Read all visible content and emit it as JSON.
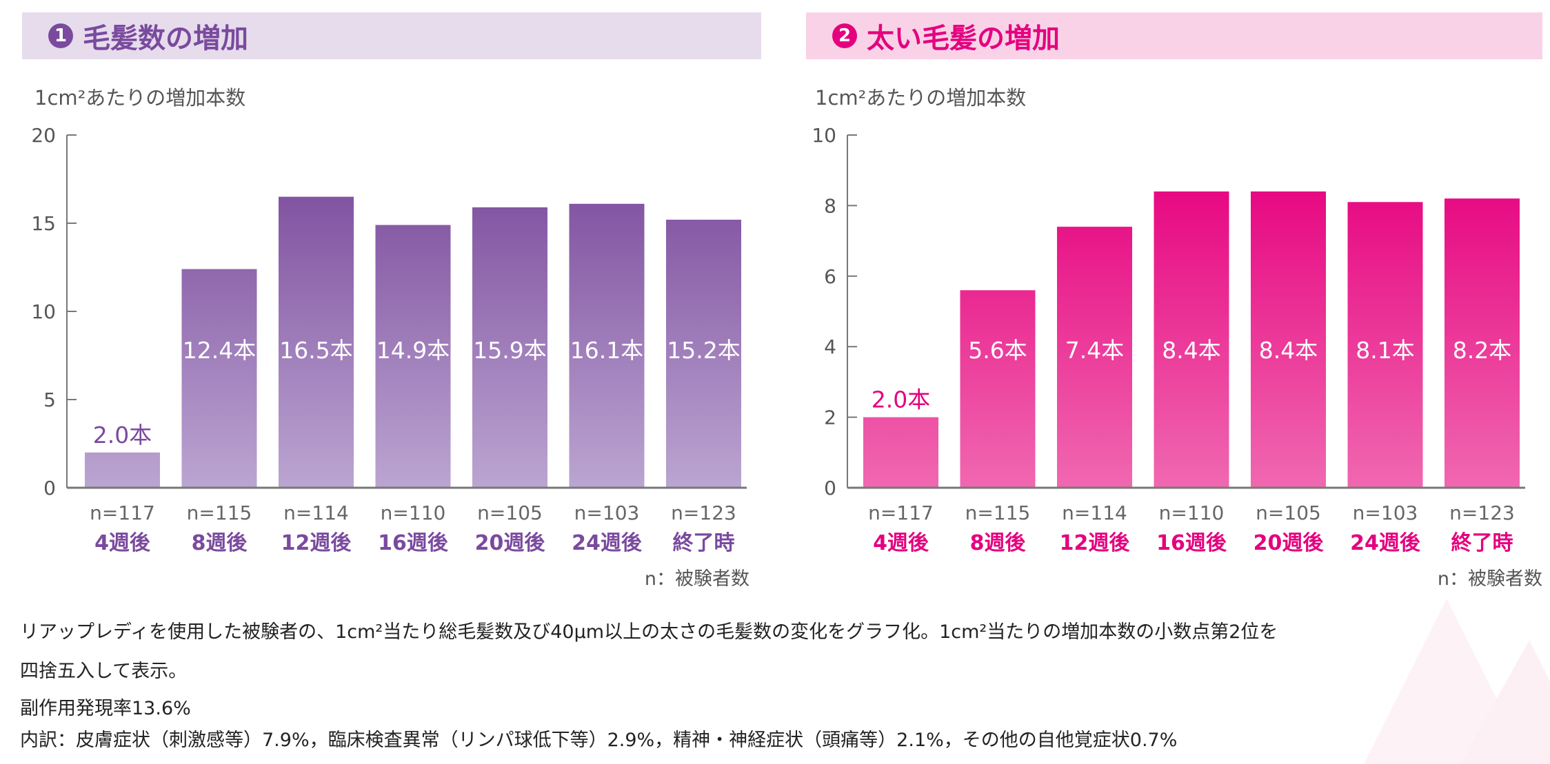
{
  "chart_data": [
    {
      "type": "bar",
      "title": "毛髪数の増加",
      "badge": "1",
      "ylabel": "1cm²あたりの増加本数",
      "ylim": [
        0,
        20
      ],
      "yticks": [
        0,
        5,
        10,
        15,
        20
      ],
      "categories": [
        "4週後",
        "8週後",
        "12週後",
        "16週後",
        "20週後",
        "24週後",
        "終了時"
      ],
      "n_labels": [
        "n=117",
        "n=115",
        "n=114",
        "n=110",
        "n=105",
        "n=103",
        "n=123"
      ],
      "values": [
        2.0,
        12.4,
        16.5,
        14.9,
        15.9,
        16.1,
        15.2
      ],
      "data_labels": [
        "2.0本",
        "12.4本",
        "16.5本",
        "14.9本",
        "15.9本",
        "16.1本",
        "15.2本"
      ],
      "note": "n：被験者数",
      "colors": {
        "accent": "#7a4a9e",
        "bar_top": "#7b4a9c",
        "bar_bottom": "#bba5d1",
        "band": "#e6dcec"
      }
    },
    {
      "type": "bar",
      "title": "太い毛髪の増加",
      "badge": "2",
      "ylabel": "1cm²あたりの増加本数",
      "ylim": [
        0,
        10
      ],
      "yticks": [
        0,
        2,
        4,
        6,
        8,
        10
      ],
      "categories": [
        "4週後",
        "8週後",
        "12週後",
        "16週後",
        "20週後",
        "24週後",
        "終了時"
      ],
      "n_labels": [
        "n=117",
        "n=115",
        "n=114",
        "n=110",
        "n=105",
        "n=103",
        "n=123"
      ],
      "values": [
        2.0,
        5.6,
        7.4,
        8.4,
        8.4,
        8.1,
        8.2
      ],
      "data_labels": [
        "2.0本",
        "5.6本",
        "7.4本",
        "8.4本",
        "8.4本",
        "8.1本",
        "8.2本"
      ],
      "note": "n：被験者数",
      "colors": {
        "accent": "#e4007f",
        "bar_top": "#e6007e",
        "bar_bottom": "#f068b0",
        "band": "#f9d2e7"
      }
    }
  ],
  "footer": {
    "line1": "リアップレディを使用した被験者の、1cm²当たり総毛髪数及び40μm以上の太さの毛髪数の変化をグラフ化。1cm²当たりの増加本数の小数点第2位を",
    "line2": "四捨五入して表示。",
    "line3": "副作用発現率13.6%",
    "line4": "内訳：皮膚症状（刺激感等）7.9%，臨床検査異常（リンパ球低下等）2.9%，精神・神経症状（頭痛等）2.1%，その他の自他覚症状0.7%"
  }
}
